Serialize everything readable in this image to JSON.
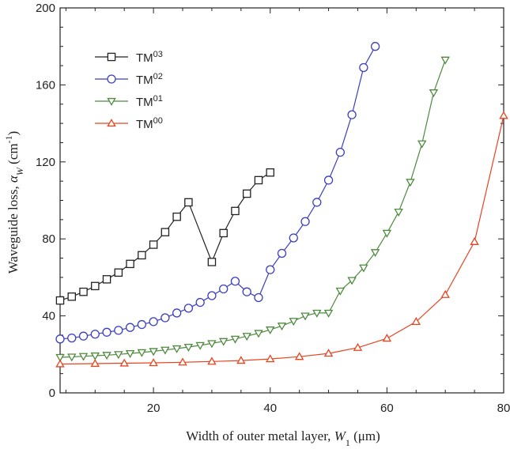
{
  "chart_data": {
    "type": "line",
    "xlabel": {
      "main": "Width of outer metal layer, ",
      "var": "W",
      "sub": "1",
      "unit": " (μm)"
    },
    "ylabel": {
      "main": "Waveguide loss, ",
      "var": "α",
      "sub": "W",
      "unit": " (cm",
      "exp": "-1",
      "close": ")"
    },
    "xlim": [
      4,
      80
    ],
    "ylim": [
      0,
      200
    ],
    "xticks": [
      20,
      40,
      60,
      80
    ],
    "yticks": [
      0,
      40,
      80,
      120,
      160,
      200
    ],
    "legend_position": "top-left",
    "series": [
      {
        "name": "TM",
        "sup": "03",
        "color": "#222222",
        "marker": "square",
        "points": [
          [
            4,
            48
          ],
          [
            6,
            50
          ],
          [
            8,
            52.5
          ],
          [
            10,
            55.5
          ],
          [
            12,
            59
          ],
          [
            14,
            62.5
          ],
          [
            16,
            67
          ],
          [
            18,
            71.5
          ],
          [
            20,
            77
          ],
          [
            22,
            83.5
          ],
          [
            24,
            91.5
          ],
          [
            26,
            99
          ],
          [
            30,
            68
          ],
          [
            32,
            83
          ],
          [
            34,
            94.5
          ],
          [
            36,
            103.5
          ],
          [
            38,
            110.5
          ],
          [
            40,
            114.5
          ]
        ]
      },
      {
        "name": "TM",
        "sup": "02",
        "color": "#3b3fbf",
        "marker": "circle",
        "points": [
          [
            4,
            28
          ],
          [
            6,
            28.5
          ],
          [
            8,
            29.5
          ],
          [
            10,
            30.5
          ],
          [
            12,
            31.5
          ],
          [
            14,
            32.5
          ],
          [
            16,
            34
          ],
          [
            18,
            35.5
          ],
          [
            20,
            37
          ],
          [
            22,
            39
          ],
          [
            24,
            41.5
          ],
          [
            26,
            44
          ],
          [
            28,
            47
          ],
          [
            30,
            50.5
          ],
          [
            32,
            54
          ],
          [
            34,
            58
          ],
          [
            36,
            52.5
          ],
          [
            38,
            49.5
          ],
          [
            40,
            64
          ],
          [
            42,
            72.5
          ],
          [
            44,
            80.5
          ],
          [
            46,
            89
          ],
          [
            48,
            99
          ],
          [
            50,
            110.5
          ],
          [
            52,
            125
          ],
          [
            54,
            144.5
          ],
          [
            56,
            169
          ],
          [
            58,
            180
          ]
        ]
      },
      {
        "name": "TM",
        "sup": "01",
        "color": "#4e8a3e",
        "marker": "triangle-down",
        "points": [
          [
            4,
            18.5
          ],
          [
            6,
            18.7
          ],
          [
            8,
            19
          ],
          [
            10,
            19.3
          ],
          [
            12,
            19.6
          ],
          [
            14,
            20
          ],
          [
            16,
            20.5
          ],
          [
            18,
            21
          ],
          [
            20,
            21.6
          ],
          [
            22,
            22.3
          ],
          [
            24,
            23
          ],
          [
            26,
            23.8
          ],
          [
            28,
            24.7
          ],
          [
            30,
            25.7
          ],
          [
            32,
            26.8
          ],
          [
            34,
            28
          ],
          [
            36,
            29.5
          ],
          [
            38,
            31
          ],
          [
            40,
            32.8
          ],
          [
            42,
            34.8
          ],
          [
            44,
            37.3
          ],
          [
            46,
            40
          ],
          [
            48,
            41.5
          ],
          [
            50,
            41.5
          ],
          [
            52,
            53
          ],
          [
            54,
            58.5
          ],
          [
            56,
            65
          ],
          [
            58,
            73
          ],
          [
            60,
            83
          ],
          [
            62,
            94
          ],
          [
            64,
            109.5
          ],
          [
            66,
            129.5
          ],
          [
            68,
            156
          ],
          [
            70,
            173
          ]
        ]
      },
      {
        "name": "TM",
        "sup": "00",
        "color": "#e8441f",
        "marker": "triangle-up",
        "points": [
          [
            4,
            15
          ],
          [
            10,
            15.2
          ],
          [
            15,
            15.4
          ],
          [
            20,
            15.6
          ],
          [
            25,
            15.9
          ],
          [
            30,
            16.3
          ],
          [
            35,
            16.8
          ],
          [
            40,
            17.6
          ],
          [
            45,
            18.8
          ],
          [
            50,
            20.5
          ],
          [
            55,
            23.5
          ],
          [
            60,
            28.3
          ],
          [
            65,
            37
          ],
          [
            70,
            51
          ],
          [
            75,
            78.5
          ],
          [
            80,
            144
          ]
        ]
      }
    ]
  }
}
